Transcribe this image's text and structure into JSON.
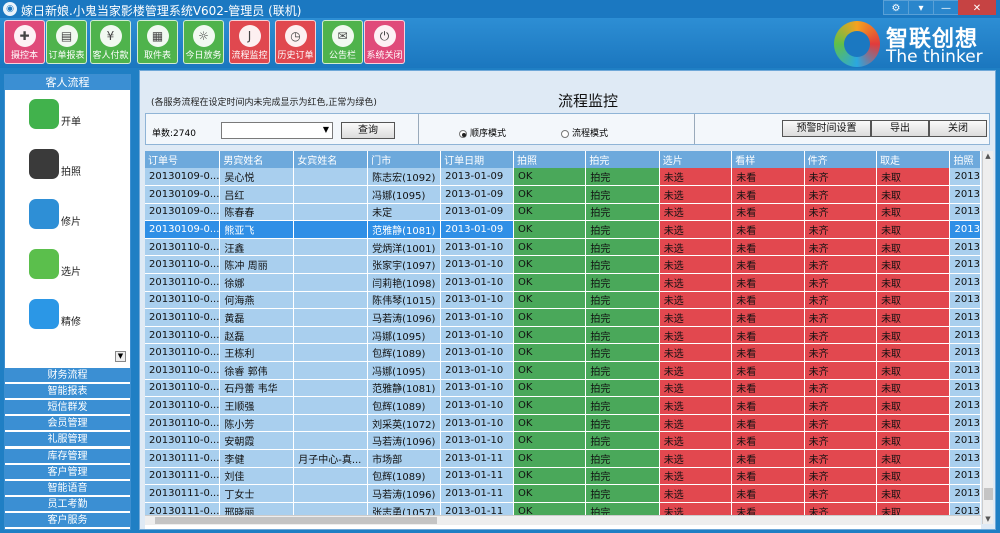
{
  "window": {
    "title": "嫁日新娘.小鬼当家影楼管理系统V602-管理员 (联机)",
    "controls": [
      "⚙",
      "▾",
      "—",
      "✕"
    ]
  },
  "toolbar": [
    {
      "label": "摄控本",
      "color": "#e04a7a",
      "glyph": "✚"
    },
    {
      "label": "订单报表",
      "color": "#4fb34c",
      "glyph": "▤"
    },
    {
      "label": "客人付款",
      "color": "#4fb34c",
      "glyph": "¥"
    },
    {
      "label": "取件表",
      "color": "#4fb34c",
      "glyph": "▦"
    },
    {
      "label": "今日放务",
      "color": "#4fb34c",
      "glyph": "☼"
    },
    {
      "label": "流程监控",
      "color": "#e0484f",
      "glyph": "J"
    },
    {
      "label": "历史订单",
      "color": "#e0484f",
      "glyph": "◷"
    },
    {
      "label": "公告栏",
      "color": "#4fb34c",
      "glyph": "✉"
    },
    {
      "label": "系统关闭",
      "color": "#e04a7a",
      "glyph": "⏻"
    }
  ],
  "logo": {
    "cn": "智联创想",
    "en": "The thinker"
  },
  "sidebar": {
    "header": "客人流程",
    "items": [
      {
        "label": "开单",
        "color": "#41b24c",
        "icon": "phone-icon"
      },
      {
        "label": "拍照",
        "color": "#3a3a3a",
        "icon": "camera-icon"
      },
      {
        "label": "修片",
        "color": "#2e8fd6",
        "icon": "brush-icon"
      },
      {
        "label": "选片",
        "color": "#5bbf4c",
        "icon": "photo-select-icon"
      },
      {
        "label": "精修",
        "color": "#2b97e6",
        "icon": "weather-icon"
      }
    ],
    "scroll_glyph": "▼",
    "groups": [
      "财务流程",
      "智能报表",
      "短信群发",
      "会员管理",
      "礼服管理",
      "库存管理",
      "客户管理",
      "智能语音",
      "员工考勤",
      "客户服务"
    ]
  },
  "main": {
    "note": "(各服务流程在设定时间内未完成显示为红色,正常为绿色)",
    "title": "流程监控",
    "count_label": "单数:2740",
    "store_select_value": "",
    "query_button": "查询",
    "radio_sequence": "顺序模式",
    "radio_process": "流程模式",
    "warn_button": "预警时间设置",
    "export_button": "导出",
    "close_button": "关闭"
  },
  "table": {
    "columns": [
      "订单号",
      "男宾姓名",
      "女宾姓名",
      "门市",
      "订单日期",
      "拍照",
      "拍完",
      "选片",
      "看样",
      "件齐",
      "取走",
      "拍照"
    ],
    "rows": [
      [
        "20130109-0...",
        "吴心悦",
        "",
        "陈志宏(1092)",
        "2013-01-09",
        "OK",
        "拍完",
        "未选",
        "未看",
        "未齐",
        "未取",
        "2013"
      ],
      [
        "20130109-0...",
        "吕红",
        "",
        "冯娜(1095)",
        "2013-01-09",
        "OK",
        "拍完",
        "未选",
        "未看",
        "未齐",
        "未取",
        "2013"
      ],
      [
        "20130109-0...",
        "陈春春",
        "",
        "未定",
        "2013-01-09",
        "OK",
        "拍完",
        "未选",
        "未看",
        "未齐",
        "未取",
        "2013"
      ],
      [
        "20130109-0...",
        "熊亚飞",
        "",
        "范雅静(1081)",
        "2013-01-09",
        "OK",
        "拍完",
        "未选",
        "未看",
        "未齐",
        "未取",
        "2013"
      ],
      [
        "20130110-0...",
        "汪鑫",
        "",
        "党炳洋(1001)",
        "2013-01-10",
        "OK",
        "拍完",
        "未选",
        "未看",
        "未齐",
        "未取",
        "2013"
      ],
      [
        "20130110-0...",
        "陈冲 周丽",
        "",
        "张家宇(1097)",
        "2013-01-10",
        "OK",
        "拍完",
        "未选",
        "未看",
        "未齐",
        "未取",
        "2013"
      ],
      [
        "20130110-0...",
        "徐娜",
        "",
        "闫莉艳(1098)",
        "2013-01-10",
        "OK",
        "拍完",
        "未选",
        "未看",
        "未齐",
        "未取",
        "2013"
      ],
      [
        "20130110-0...",
        "何海燕",
        "",
        "陈伟琴(1015)",
        "2013-01-10",
        "OK",
        "拍完",
        "未选",
        "未看",
        "未齐",
        "未取",
        "2013"
      ],
      [
        "20130110-0...",
        "黄磊",
        "",
        "马若涛(1096)",
        "2013-01-10",
        "OK",
        "拍完",
        "未选",
        "未看",
        "未齐",
        "未取",
        "2013"
      ],
      [
        "20130110-0...",
        "赵磊",
        "",
        "冯娜(1095)",
        "2013-01-10",
        "OK",
        "拍完",
        "未选",
        "未看",
        "未齐",
        "未取",
        "2013"
      ],
      [
        "20130110-0...",
        "王栋利",
        "",
        "包辉(1089)",
        "2013-01-10",
        "OK",
        "拍完",
        "未选",
        "未看",
        "未齐",
        "未取",
        "2013"
      ],
      [
        "20130110-0...",
        "徐睿 郭伟",
        "",
        "冯娜(1095)",
        "2013-01-10",
        "OK",
        "拍完",
        "未选",
        "未看",
        "未齐",
        "未取",
        "2013"
      ],
      [
        "20130110-0...",
        "石丹蕾 韦华",
        "",
        "范雅静(1081)",
        "2013-01-10",
        "OK",
        "拍完",
        "未选",
        "未看",
        "未齐",
        "未取",
        "2013"
      ],
      [
        "20130110-0...",
        "王顺强",
        "",
        "包辉(1089)",
        "2013-01-10",
        "OK",
        "拍完",
        "未选",
        "未看",
        "未齐",
        "未取",
        "2013"
      ],
      [
        "20130110-0...",
        "陈小芳",
        "",
        "刘采英(1072)",
        "2013-01-10",
        "OK",
        "拍完",
        "未选",
        "未看",
        "未齐",
        "未取",
        "2013"
      ],
      [
        "20130110-0...",
        "安朝霞",
        "",
        "马若涛(1096)",
        "2013-01-10",
        "OK",
        "拍完",
        "未选",
        "未看",
        "未齐",
        "未取",
        "2013"
      ],
      [
        "20130111-0...",
        "李健",
        "月子中心-真...",
        "市场部",
        "2013-01-11",
        "OK",
        "拍完",
        "未选",
        "未看",
        "未齐",
        "未取",
        "2013"
      ],
      [
        "20130111-0...",
        "刘佳",
        "",
        "包辉(1089)",
        "2013-01-11",
        "OK",
        "拍完",
        "未选",
        "未看",
        "未齐",
        "未取",
        "2013"
      ],
      [
        "20130111-0...",
        "丁女士",
        "",
        "马若涛(1096)",
        "2013-01-11",
        "OK",
        "拍完",
        "未选",
        "未看",
        "未齐",
        "未取",
        "2013"
      ],
      [
        "20130111-0...",
        "邢晓丽",
        "",
        "张志勇(1057)",
        "2013-01-11",
        "OK",
        "拍完",
        "未选",
        "未看",
        "未齐",
        "未取",
        "2013"
      ]
    ],
    "selected_row": 3,
    "colors": {
      "ok": "#4aa85a",
      "bad": "#e2484f",
      "info": "#a9cfee",
      "selected": "#2f8fe6"
    }
  }
}
